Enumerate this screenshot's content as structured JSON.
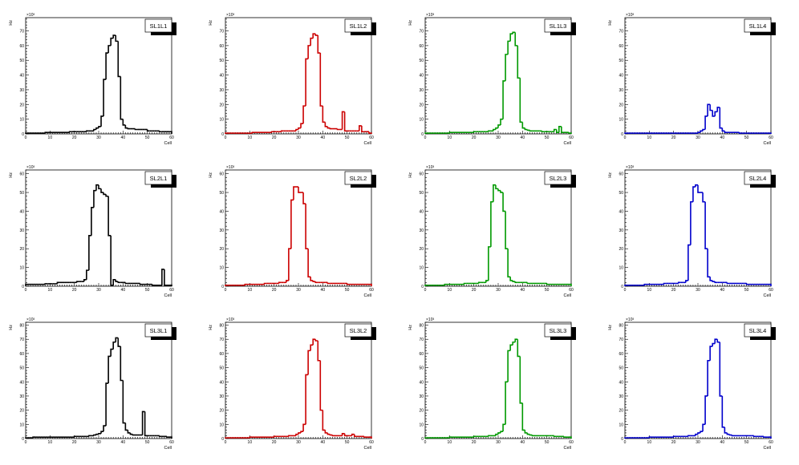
{
  "chart_data": [
    {
      "type": "bar",
      "title": "SL1L1",
      "color": "#000000",
      "xlabel": "Cell",
      "ylabel": "Hz",
      "y_multiplier": "×10³",
      "xlim": [
        0,
        60
      ],
      "ylim": [
        0,
        79
      ],
      "xticks": [
        "0",
        "10",
        "20",
        "30",
        "40",
        "50",
        "60"
      ],
      "yticks": [
        "0",
        "10",
        "20",
        "30",
        "40",
        "50",
        "60",
        "70"
      ],
      "values": [
        0.5,
        0.5,
        0.5,
        0.5,
        0.5,
        0.5,
        0.5,
        0.5,
        1,
        1,
        1,
        1,
        1,
        1,
        1,
        1,
        1,
        1,
        1.5,
        1.5,
        1.5,
        1.5,
        1.5,
        1.5,
        1.5,
        2,
        2,
        2,
        3,
        4,
        5,
        12,
        37,
        55,
        60,
        65,
        67,
        63,
        39,
        10,
        6,
        4,
        3.5,
        3.5,
        3.5,
        3,
        3,
        3,
        3,
        3,
        2,
        2,
        2,
        2,
        2,
        1.5,
        1.5,
        1.5,
        1.5,
        1.5
      ]
    },
    {
      "type": "bar",
      "title": "SL1L2",
      "color": "#cc0000",
      "xlabel": "Cell",
      "ylabel": "Hz",
      "y_multiplier": "×10³",
      "xlim": [
        0,
        60
      ],
      "ylim": [
        0,
        79
      ],
      "xticks": [
        "0",
        "10",
        "20",
        "30",
        "40",
        "50",
        "60"
      ],
      "yticks": [
        "0",
        "10",
        "20",
        "30",
        "40",
        "50",
        "60",
        "70"
      ],
      "values": [
        0.5,
        0.5,
        0.5,
        0.5,
        0.5,
        0.5,
        0.5,
        0.5,
        0.5,
        0.5,
        0.5,
        1,
        1,
        1,
        1,
        1,
        1,
        1,
        1,
        1.5,
        1.5,
        1.5,
        1.5,
        2,
        2,
        2,
        2,
        2,
        2,
        3,
        4,
        7,
        19,
        51,
        60,
        65,
        68,
        67,
        55,
        19,
        8,
        5,
        4,
        3.5,
        3.5,
        3.5,
        3,
        3,
        15,
        2,
        2,
        2,
        2,
        2,
        2,
        5.5,
        1.5,
        1.5,
        1.5,
        0.5
      ]
    },
    {
      "type": "bar",
      "title": "SL1L3",
      "color": "#009900",
      "xlabel": "Cell",
      "ylabel": "Hz",
      "y_multiplier": "×10³",
      "xlim": [
        0,
        60
      ],
      "ylim": [
        0,
        79
      ],
      "xticks": [
        "0",
        "10",
        "20",
        "30",
        "40",
        "50",
        "60"
      ],
      "yticks": [
        "0",
        "10",
        "20",
        "30",
        "40",
        "50",
        "60",
        "70"
      ],
      "values": [
        0.5,
        0.5,
        0.5,
        0.5,
        0.5,
        0.5,
        0.5,
        0.5,
        0.5,
        0.5,
        1,
        1,
        1,
        1,
        1,
        1,
        1,
        1,
        1,
        1,
        1.5,
        1.5,
        1.5,
        1.5,
        1.5,
        1.5,
        2,
        2,
        3,
        4,
        6,
        10,
        36,
        54,
        63,
        68,
        69,
        60,
        38,
        8,
        4,
        3,
        2.5,
        2,
        2,
        2,
        2,
        2,
        1.5,
        1.5,
        1.5,
        1.5,
        1.5,
        3,
        1,
        5,
        1,
        1,
        1,
        0.5
      ]
    },
    {
      "type": "bar",
      "title": "SL1L4",
      "color": "#0000cc",
      "xlabel": "Cell",
      "ylabel": "Hz",
      "y_multiplier": "×10³",
      "xlim": [
        0,
        60
      ],
      "ylim": [
        0,
        79
      ],
      "xticks": [
        "0",
        "10",
        "20",
        "30",
        "40",
        "50",
        "60"
      ],
      "yticks": [
        "0",
        "10",
        "20",
        "30",
        "40",
        "50",
        "60",
        "70"
      ],
      "values": [
        0.5,
        0.5,
        0.5,
        0.5,
        0.5,
        0.5,
        0.5,
        0.5,
        0.5,
        0.5,
        0.5,
        0.5,
        0.5,
        0.5,
        0.5,
        0.5,
        0.5,
        0.5,
        0.5,
        0.5,
        0.5,
        0.5,
        0.5,
        0.5,
        0.5,
        0.5,
        0.5,
        0.5,
        0.5,
        0.5,
        1,
        2,
        3,
        12,
        20,
        16,
        12,
        15,
        18,
        4,
        2,
        1,
        1,
        1,
        1,
        1,
        1,
        0.5,
        0.5,
        0.5,
        0.5,
        0.5,
        0.5,
        0.5,
        0.5,
        0.5,
        0.5,
        0.5,
        0.5,
        0.5
      ]
    },
    {
      "type": "bar",
      "title": "SL2L1",
      "color": "#000000",
      "xlabel": "Cell",
      "ylabel": "Hz",
      "y_multiplier": "×10³",
      "xlim": [
        0,
        60
      ],
      "ylim": [
        0,
        62
      ],
      "xticks": [
        "0",
        "10",
        "20",
        "30",
        "40",
        "50",
        "60"
      ],
      "yticks": [
        "0",
        "10",
        "20",
        "30",
        "40",
        "50",
        "60"
      ],
      "values": [
        1,
        1,
        1,
        1,
        1,
        1,
        1,
        1,
        1.3,
        1.3,
        1.3,
        1.3,
        1.3,
        2,
        2,
        2,
        2,
        2,
        2,
        2,
        2,
        2.5,
        2.5,
        2.5,
        3.5,
        8.5,
        27,
        42,
        51,
        54,
        52,
        50,
        49,
        48,
        27,
        0.5,
        3.5,
        2.5,
        2,
        2,
        2,
        1.5,
        1.5,
        1.5,
        1.5,
        1.5,
        1.5,
        1,
        1,
        1,
        1,
        1,
        0.5,
        0.5,
        0.5,
        0.5,
        9,
        0.5,
        0.5,
        0.5
      ]
    },
    {
      "type": "bar",
      "title": "SL2L2",
      "color": "#cc0000",
      "xlabel": "Cell",
      "ylabel": "Hz",
      "y_multiplier": "×10³",
      "xlim": [
        0,
        60
      ],
      "ylim": [
        0,
        62
      ],
      "xticks": [
        "0",
        "10",
        "20",
        "30",
        "40",
        "50",
        "60"
      ],
      "yticks": [
        "0",
        "10",
        "20",
        "30",
        "40",
        "50",
        "60"
      ],
      "values": [
        0.5,
        0.5,
        0.5,
        0.5,
        0.5,
        0.5,
        0.5,
        0.5,
        1,
        1,
        1,
        1,
        1,
        1,
        1,
        1,
        1.5,
        1.5,
        1.5,
        1.5,
        1.5,
        1.5,
        2,
        2,
        2,
        3,
        20,
        46,
        53,
        53,
        50,
        50,
        44,
        20,
        5,
        3,
        2.5,
        2,
        2,
        2,
        2,
        2,
        1.5,
        1.5,
        1.5,
        1.5,
        1.5,
        1.5,
        1.5,
        1.5,
        1,
        1,
        1,
        1,
        1,
        1,
        1,
        1,
        1,
        1
      ]
    },
    {
      "type": "bar",
      "title": "SL2L3",
      "color": "#009900",
      "xlabel": "Cell",
      "ylabel": "Hz",
      "y_multiplier": "×10³",
      "xlim": [
        0,
        60
      ],
      "ylim": [
        0,
        62
      ],
      "xticks": [
        "0",
        "10",
        "20",
        "30",
        "40",
        "50",
        "60"
      ],
      "yticks": [
        "0",
        "10",
        "20",
        "30",
        "40",
        "50",
        "60"
      ],
      "values": [
        0.5,
        0.5,
        0.5,
        0.5,
        0.5,
        0.5,
        0.5,
        0.5,
        1,
        1,
        1,
        1,
        1,
        1,
        1,
        1,
        1.5,
        1.5,
        1.5,
        1.5,
        1.5,
        1.5,
        2,
        2,
        2,
        3,
        21,
        45,
        54,
        52,
        51,
        50,
        40,
        20,
        5,
        3,
        2.5,
        2,
        2,
        2,
        2,
        2,
        1.5,
        1.5,
        1.5,
        1.5,
        1.5,
        1.5,
        1.5,
        1.5,
        1,
        1,
        1,
        1,
        1,
        1,
        1,
        1,
        1,
        1
      ]
    },
    {
      "type": "bar",
      "title": "SL2L4",
      "color": "#0000cc",
      "xlabel": "Cell",
      "ylabel": "Hz",
      "y_multiplier": "×10³",
      "xlim": [
        0,
        60
      ],
      "ylim": [
        0,
        62
      ],
      "xticks": [
        "0",
        "10",
        "20",
        "30",
        "40",
        "50",
        "60"
      ],
      "yticks": [
        "0",
        "10",
        "20",
        "30",
        "40",
        "50",
        "60"
      ],
      "values": [
        0.5,
        0.5,
        0.5,
        0.5,
        0.5,
        0.5,
        0.5,
        0.5,
        1,
        1,
        1,
        1,
        1,
        1,
        1,
        1,
        1.5,
        1.5,
        1.5,
        1.5,
        1.5,
        1.5,
        2,
        2,
        2,
        3,
        22,
        45,
        53,
        54,
        50,
        50,
        45,
        20,
        5,
        3,
        2.5,
        2,
        2,
        2,
        2,
        2,
        1.5,
        1.5,
        1.5,
        1.5,
        1.5,
        1.5,
        1.5,
        1.5,
        1,
        1,
        1,
        1,
        1,
        1,
        1,
        1,
        1,
        1
      ]
    },
    {
      "type": "bar",
      "title": "SL3L1",
      "color": "#000000",
      "xlabel": "Cell",
      "ylabel": "Hz",
      "y_multiplier": "×10³",
      "xlim": [
        0,
        60
      ],
      "ylim": [
        0,
        82
      ],
      "xticks": [
        "0",
        "10",
        "20",
        "30",
        "40",
        "50",
        "60"
      ],
      "yticks": [
        "0",
        "10",
        "20",
        "30",
        "40",
        "50",
        "60",
        "70",
        "80"
      ],
      "values": [
        0.5,
        0.5,
        0.5,
        1,
        1,
        1,
        1,
        1,
        1,
        1,
        1,
        1,
        1,
        1,
        1,
        1,
        1,
        1,
        1,
        1,
        1.5,
        1.5,
        1.5,
        1.5,
        1.5,
        1.5,
        2,
        2,
        2.5,
        3,
        3.5,
        5,
        9,
        39,
        58,
        63,
        68,
        71,
        65,
        41,
        11,
        6,
        4,
        3,
        2.5,
        2.5,
        2.5,
        2.5,
        19,
        2,
        2,
        2,
        2,
        2,
        2,
        1.5,
        1.5,
        1.5,
        1,
        1
      ]
    },
    {
      "type": "bar",
      "title": "SL3L2",
      "color": "#cc0000",
      "xlabel": "Cell",
      "ylabel": "Hz",
      "y_multiplier": "×10³",
      "xlim": [
        0,
        60
      ],
      "ylim": [
        0,
        82
      ],
      "xticks": [
        "0",
        "10",
        "20",
        "30",
        "40",
        "50",
        "60"
      ],
      "yticks": [
        "0",
        "10",
        "20",
        "30",
        "40",
        "50",
        "60",
        "70",
        "80"
      ],
      "values": [
        0.5,
        0.5,
        0.5,
        0.5,
        0.5,
        0.5,
        0.5,
        0.5,
        0.5,
        0.5,
        1,
        1,
        1,
        1,
        1,
        1,
        1,
        1,
        1,
        1,
        1.5,
        1.5,
        1.5,
        1.5,
        1.5,
        1.5,
        2,
        2,
        2,
        3,
        4,
        5,
        10,
        45,
        62,
        66,
        70,
        69,
        55,
        20,
        6,
        4,
        3,
        2.5,
        2,
        2,
        2,
        2,
        3.5,
        2,
        2,
        2,
        3,
        1.5,
        1.5,
        1.5,
        1.5,
        1,
        1,
        1
      ]
    },
    {
      "type": "bar",
      "title": "SL3L3",
      "color": "#009900",
      "xlabel": "Cell",
      "ylabel": "Hz",
      "y_multiplier": "×10³",
      "xlim": [
        0,
        60
      ],
      "ylim": [
        0,
        82
      ],
      "xticks": [
        "0",
        "10",
        "20",
        "30",
        "40",
        "50",
        "60"
      ],
      "yticks": [
        "0",
        "10",
        "20",
        "30",
        "40",
        "50",
        "60",
        "70",
        "80"
      ],
      "values": [
        0.5,
        0.5,
        0.5,
        0.5,
        0.5,
        0.5,
        0.5,
        0.5,
        0.5,
        0.5,
        1,
        1,
        1,
        1,
        1,
        1,
        1,
        1,
        1,
        1,
        1.5,
        1.5,
        1.5,
        1.5,
        1.5,
        1.5,
        2,
        2,
        2,
        3,
        4,
        5,
        10,
        40,
        62,
        66,
        68,
        70,
        58,
        25,
        6,
        4,
        3,
        2.5,
        2,
        2,
        2,
        2,
        2,
        2,
        2,
        2,
        2,
        1.5,
        1.5,
        1.5,
        1.5,
        1,
        1,
        1
      ]
    },
    {
      "type": "bar",
      "title": "SL3L4",
      "color": "#0000cc",
      "xlabel": "Cell",
      "ylabel": "Hz",
      "y_multiplier": "×10³",
      "xlim": [
        0,
        60
      ],
      "ylim": [
        0,
        82
      ],
      "xticks": [
        "0",
        "10",
        "20",
        "30",
        "40",
        "50",
        "60"
      ],
      "yticks": [
        "0",
        "10",
        "20",
        "30",
        "40",
        "50",
        "60",
        "70",
        "80"
      ],
      "values": [
        0.5,
        0.5,
        0.5,
        0.5,
        0.5,
        0.5,
        0.5,
        0.5,
        0.5,
        0.5,
        1,
        1,
        1,
        1,
        1,
        1,
        1,
        1,
        1,
        1,
        1.5,
        1.5,
        1.5,
        1.5,
        1.5,
        1.5,
        2,
        2,
        2,
        3,
        4,
        5,
        10,
        30,
        55,
        65,
        67,
        70,
        68,
        30,
        8,
        4,
        3,
        2.5,
        2,
        2,
        2,
        2,
        2,
        2,
        2,
        2,
        2,
        1.5,
        1.5,
        1.5,
        1.5,
        1,
        1,
        1
      ]
    }
  ]
}
